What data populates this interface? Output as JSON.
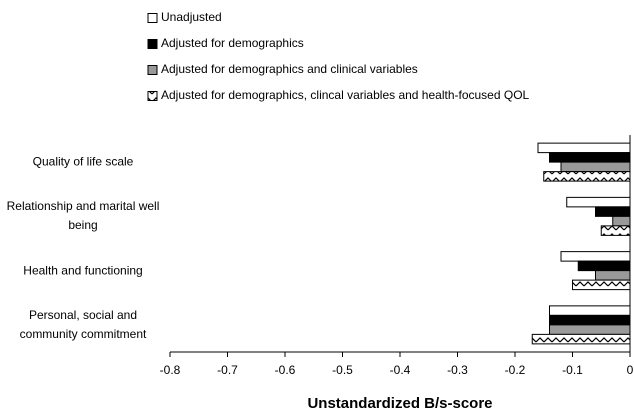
{
  "chart_data": {
    "type": "barh",
    "x_label": "Unstandardized B/s-score",
    "categories": [
      "Quality of life scale",
      "Relationship and marital well being",
      "Health and functioning",
      "Personal, social and community commitment"
    ],
    "series": [
      {
        "name": "Unadjusted",
        "color": "#ffffff",
        "values": [
          -0.16,
          -0.11,
          -0.12,
          -0.14
        ]
      },
      {
        "name": "Adjusted for demographics",
        "color": "#000000",
        "values": [
          -0.14,
          -0.06,
          -0.09,
          -0.14
        ]
      },
      {
        "name": "Adjusted for demographics and clinical variables",
        "color": "#999999",
        "values": [
          -0.12,
          -0.03,
          -0.06,
          -0.14
        ]
      },
      {
        "name": "Adjusted for demographics, clincal variables and health-focused QOL",
        "color": "#ffffff",
        "hatch": true,
        "values": [
          -0.15,
          -0.05,
          -0.1,
          -0.17
        ]
      }
    ],
    "xlim": [
      -0.8,
      0
    ],
    "xticks": [
      -0.8,
      -0.7,
      -0.6,
      -0.5,
      -0.4,
      -0.3,
      -0.2,
      -0.1,
      0
    ],
    "legend": "top"
  }
}
